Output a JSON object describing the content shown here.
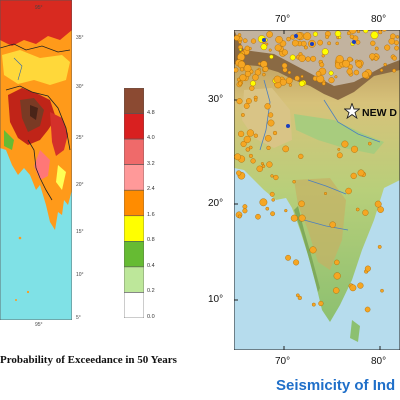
{
  "left_panel": {
    "caption": "Probability of Exceedance in 50 Years",
    "top_lon_label": "95°",
    "bottom_lon_label": "95°",
    "lat_labels": [
      "35°",
      "30°",
      "25°",
      "20°",
      "15°",
      "10°",
      "5°"
    ],
    "legend": {
      "labels": [
        "4.8",
        "4.0",
        "3.2",
        "2.4",
        "1.6",
        "0.8",
        "0.4",
        "0.2",
        "0.0"
      ],
      "colors": [
        "#8b4a32",
        "#d92020",
        "#ef6a6a",
        "#ff9999",
        "#ff8c00",
        "#ffff00",
        "#66bb33",
        "#bde79a",
        "#ffffff"
      ]
    }
  },
  "right_panel": {
    "caption": "Seismicity of Ind",
    "capital_label": "NEW D",
    "lon_labels_top": [
      "70°",
      "80°"
    ],
    "lon_labels_bottom": [
      "70°",
      "80°"
    ],
    "lat_labels": [
      "30°",
      "20°",
      "10°"
    ],
    "colors": {
      "event": "#f5a623",
      "event_edge": "#a86400",
      "deep_event": "#ffff00",
      "sea": "#b6dced",
      "land_low": "#c9d88a",
      "land_high": "#9c7a4a"
    }
  }
}
